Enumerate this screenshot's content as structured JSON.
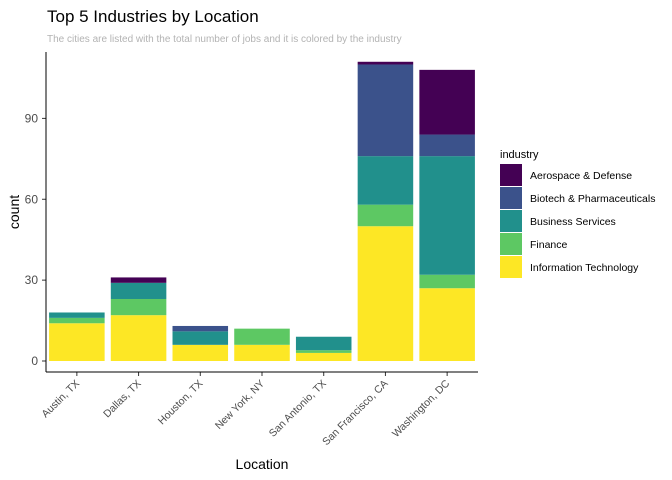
{
  "chart_data": {
    "type": "bar",
    "stacked": true,
    "title": "Top 5 Industries by Location",
    "subtitle": "The cities are listed with the total number of jobs and it is colored by the industry",
    "xlabel": "Location",
    "ylabel": "count",
    "ylim": [
      0,
      113
    ],
    "yticks": [
      0,
      30,
      60,
      90
    ],
    "grid": false,
    "legend_position": "right",
    "legend_title": "industry",
    "categories": [
      "Austin, TX",
      "Dallas, TX",
      "Houston, TX",
      "New York, NY",
      "San Antonio, TX",
      "San Francisco, CA",
      "Washington, DC"
    ],
    "series": [
      {
        "name": "Information Technology",
        "color": "#FDE725",
        "values": [
          14,
          17,
          6,
          6,
          3,
          50,
          27
        ]
      },
      {
        "name": "Finance",
        "color": "#5DC863",
        "values": [
          2,
          6,
          0,
          6,
          1,
          8,
          5
        ]
      },
      {
        "name": "Business Services",
        "color": "#21908C",
        "values": [
          2,
          6,
          5,
          0,
          5,
          18,
          44
        ]
      },
      {
        "name": "Biotech & Pharmaceuticals",
        "color": "#3B528B",
        "values": [
          0,
          0,
          2,
          0,
          0,
          34,
          8
        ]
      },
      {
        "name": "Aerospace & Defense",
        "color": "#440154",
        "values": [
          0,
          2,
          0,
          0,
          0,
          1,
          24
        ]
      }
    ],
    "legend_order": [
      "Aerospace & Defense",
      "Biotech & Pharmaceuticals",
      "Business Services",
      "Finance",
      "Information Technology"
    ]
  }
}
